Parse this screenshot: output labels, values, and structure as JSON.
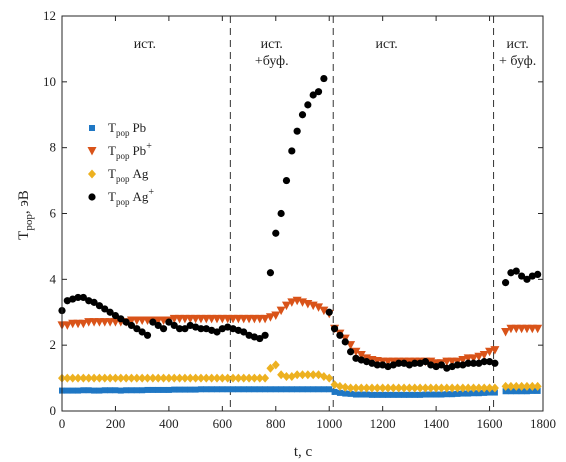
{
  "chart_data": {
    "type": "scatter",
    "xlabel": "t, c",
    "ylabel_main": "T",
    "ylabel_sub": "pop",
    "ylabel_tail": ", эВ",
    "xlim": [
      0,
      1800
    ],
    "ylim": [
      0,
      12
    ],
    "x_ticks": [
      "0",
      "200",
      "400",
      "600",
      "800",
      "1000",
      "1200",
      "1400",
      "1600",
      "1800"
    ],
    "y_ticks": [
      "0",
      "2",
      "4",
      "6",
      "8",
      "10",
      "12"
    ],
    "vlines": [
      630,
      1015,
      1615
    ],
    "regions": [
      {
        "lines": [
          "ист."
        ],
        "x": 310
      },
      {
        "lines": [
          "ист.",
          "+буф."
        ],
        "x": 785
      },
      {
        "lines": [
          "ист."
        ],
        "x": 1215
      },
      {
        "lines": [
          "ист.",
          "+ буф."
        ],
        "x": 1705
      }
    ],
    "legend": [
      {
        "main": "T",
        "sub": "pop",
        "ion": "Pb",
        "sup": "",
        "color": "#1f77c4",
        "marker": "square"
      },
      {
        "main": "T",
        "sub": "pop",
        "ion": "Pb",
        "sup": "+",
        "color": "#d95319",
        "marker": "triangle-down"
      },
      {
        "main": "T",
        "sub": "pop",
        "ion": "Ag",
        "sup": "",
        "color": "#edb120",
        "marker": "diamond"
      },
      {
        "main": "T",
        "sub": "pop",
        "ion": "Ag",
        "sup": "+",
        "color": "#000000",
        "marker": "circle"
      }
    ],
    "series": [
      {
        "marker": "square",
        "color": "#1f77c4",
        "x": [
          0,
          20,
          40,
          60,
          80,
          100,
          120,
          140,
          160,
          180,
          200,
          220,
          240,
          260,
          280,
          300,
          320,
          340,
          360,
          380,
          400,
          420,
          440,
          460,
          480,
          500,
          520,
          540,
          560,
          580,
          600,
          620,
          640,
          660,
          680,
          700,
          720,
          740,
          760,
          780,
          800,
          820,
          840,
          860,
          880,
          900,
          920,
          940,
          960,
          980,
          1000,
          1020,
          1040,
          1060,
          1080,
          1100,
          1120,
          1140,
          1160,
          1180,
          1200,
          1220,
          1240,
          1260,
          1280,
          1300,
          1320,
          1340,
          1360,
          1380,
          1400,
          1420,
          1440,
          1460,
          1480,
          1500,
          1520,
          1540,
          1560,
          1580,
          1600,
          1620,
          1660,
          1680,
          1700,
          1720,
          1740,
          1760,
          1780
        ],
        "y": [
          0.62,
          0.62,
          0.62,
          0.62,
          0.63,
          0.63,
          0.62,
          0.62,
          0.63,
          0.63,
          0.63,
          0.62,
          0.63,
          0.63,
          0.63,
          0.63,
          0.64,
          0.64,
          0.64,
          0.64,
          0.64,
          0.65,
          0.65,
          0.65,
          0.65,
          0.65,
          0.66,
          0.66,
          0.66,
          0.66,
          0.66,
          0.66,
          0.66,
          0.66,
          0.66,
          0.66,
          0.66,
          0.66,
          0.66,
          0.66,
          0.66,
          0.66,
          0.66,
          0.66,
          0.66,
          0.66,
          0.66,
          0.66,
          0.66,
          0.66,
          0.66,
          0.58,
          0.55,
          0.53,
          0.52,
          0.5,
          0.5,
          0.5,
          0.49,
          0.49,
          0.49,
          0.49,
          0.49,
          0.49,
          0.49,
          0.49,
          0.49,
          0.49,
          0.5,
          0.5,
          0.5,
          0.5,
          0.51,
          0.51,
          0.52,
          0.53,
          0.53,
          0.54,
          0.54,
          0.55,
          0.56,
          0.56,
          0.6,
          0.6,
          0.6,
          0.6,
          0.6,
          0.61,
          0.61
        ]
      },
      {
        "marker": "triangle-down",
        "color": "#d95319",
        "x": [
          0,
          20,
          40,
          60,
          80,
          100,
          120,
          140,
          160,
          180,
          200,
          220,
          240,
          260,
          280,
          300,
          320,
          340,
          360,
          380,
          400,
          420,
          440,
          460,
          480,
          500,
          520,
          540,
          560,
          580,
          600,
          620,
          640,
          660,
          680,
          700,
          720,
          740,
          760,
          780,
          800,
          820,
          840,
          860,
          880,
          900,
          920,
          940,
          960,
          980,
          1000,
          1020,
          1040,
          1060,
          1080,
          1100,
          1120,
          1140,
          1160,
          1180,
          1200,
          1220,
          1240,
          1260,
          1280,
          1300,
          1320,
          1340,
          1360,
          1380,
          1400,
          1420,
          1440,
          1460,
          1480,
          1500,
          1520,
          1540,
          1560,
          1580,
          1600,
          1620,
          1660,
          1680,
          1700,
          1720,
          1740,
          1760,
          1780
        ],
        "y": [
          2.6,
          2.6,
          2.65,
          2.65,
          2.65,
          2.7,
          2.7,
          2.7,
          2.7,
          2.7,
          2.7,
          2.7,
          2.7,
          2.75,
          2.75,
          2.75,
          2.75,
          2.75,
          2.75,
          2.75,
          2.75,
          2.8,
          2.8,
          2.8,
          2.8,
          2.8,
          2.8,
          2.8,
          2.8,
          2.8,
          2.8,
          2.8,
          2.8,
          2.8,
          2.8,
          2.8,
          2.8,
          2.8,
          2.8,
          2.85,
          2.9,
          3.05,
          3.2,
          3.3,
          3.35,
          3.3,
          3.25,
          3.2,
          3.15,
          3.05,
          2.95,
          2.5,
          2.35,
          2.2,
          2.0,
          1.8,
          1.7,
          1.6,
          1.55,
          1.52,
          1.5,
          1.5,
          1.5,
          1.5,
          1.5,
          1.5,
          1.5,
          1.5,
          1.5,
          1.5,
          1.45,
          1.45,
          1.5,
          1.5,
          1.5,
          1.55,
          1.6,
          1.6,
          1.65,
          1.7,
          1.8,
          1.85,
          2.4,
          2.5,
          2.5,
          2.5,
          2.5,
          2.5,
          2.5
        ]
      },
      {
        "marker": "diamond",
        "color": "#edb120",
        "x": [
          0,
          20,
          40,
          60,
          80,
          100,
          120,
          140,
          160,
          180,
          200,
          220,
          240,
          260,
          280,
          300,
          320,
          340,
          360,
          380,
          400,
          420,
          440,
          460,
          480,
          500,
          520,
          540,
          560,
          580,
          600,
          620,
          640,
          660,
          680,
          700,
          720,
          740,
          760,
          780,
          800,
          820,
          840,
          860,
          880,
          900,
          920,
          940,
          960,
          980,
          1000,
          1020,
          1040,
          1060,
          1080,
          1100,
          1120,
          1140,
          1160,
          1180,
          1200,
          1220,
          1240,
          1260,
          1280,
          1300,
          1320,
          1340,
          1360,
          1380,
          1400,
          1420,
          1440,
          1460,
          1480,
          1500,
          1520,
          1540,
          1560,
          1580,
          1600,
          1620,
          1660,
          1680,
          1700,
          1720,
          1740,
          1760,
          1780
        ],
        "y": [
          1.0,
          1.0,
          1.0,
          1.0,
          1.0,
          1.0,
          1.0,
          1.0,
          1.0,
          1.0,
          1.0,
          1.0,
          1.0,
          1.0,
          1.0,
          1.0,
          1.0,
          1.0,
          1.0,
          1.0,
          1.0,
          1.0,
          1.0,
          1.0,
          1.0,
          1.0,
          1.0,
          1.0,
          1.0,
          1.0,
          1.0,
          1.0,
          1.0,
          1.0,
          1.0,
          1.0,
          1.0,
          1.0,
          1.0,
          1.3,
          1.4,
          1.1,
          1.05,
          1.05,
          1.1,
          1.1,
          1.1,
          1.1,
          1.1,
          1.05,
          1.0,
          0.8,
          0.75,
          0.72,
          0.7,
          0.7,
          0.7,
          0.7,
          0.7,
          0.7,
          0.7,
          0.7,
          0.7,
          0.7,
          0.7,
          0.7,
          0.7,
          0.7,
          0.7,
          0.7,
          0.7,
          0.7,
          0.7,
          0.7,
          0.7,
          0.7,
          0.7,
          0.7,
          0.7,
          0.7,
          0.7,
          0.7,
          0.75,
          0.75,
          0.75,
          0.75,
          0.75,
          0.75,
          0.75
        ]
      },
      {
        "marker": "circle",
        "color": "#000000",
        "x": [
          0,
          20,
          40,
          60,
          80,
          100,
          120,
          140,
          160,
          180,
          200,
          220,
          240,
          260,
          280,
          300,
          320,
          340,
          360,
          380,
          400,
          420,
          440,
          460,
          480,
          500,
          520,
          540,
          560,
          580,
          600,
          620,
          640,
          660,
          680,
          700,
          720,
          740,
          760,
          780,
          800,
          820,
          840,
          860,
          880,
          900,
          920,
          940,
          960,
          980,
          1000,
          1020,
          1040,
          1060,
          1080,
          1100,
          1120,
          1140,
          1160,
          1180,
          1200,
          1220,
          1240,
          1260,
          1280,
          1300,
          1320,
          1340,
          1360,
          1380,
          1400,
          1420,
          1440,
          1460,
          1480,
          1500,
          1520,
          1540,
          1560,
          1580,
          1600,
          1620,
          1660,
          1680,
          1700,
          1720,
          1740,
          1760,
          1780
        ],
        "y": [
          3.05,
          3.35,
          3.4,
          3.45,
          3.45,
          3.35,
          3.3,
          3.2,
          3.1,
          3.0,
          2.9,
          2.8,
          2.7,
          2.6,
          2.5,
          2.4,
          2.3,
          2.7,
          2.6,
          2.5,
          2.7,
          2.6,
          2.5,
          2.5,
          2.6,
          2.55,
          2.5,
          2.5,
          2.45,
          2.4,
          2.5,
          2.55,
          2.5,
          2.45,
          2.4,
          2.3,
          2.25,
          2.2,
          2.3,
          4.2,
          5.4,
          6.0,
          7.0,
          7.9,
          8.5,
          9.0,
          9.3,
          9.6,
          9.7,
          10.1,
          3.0,
          2.5,
          2.3,
          2.1,
          1.8,
          1.6,
          1.55,
          1.5,
          1.45,
          1.4,
          1.4,
          1.35,
          1.4,
          1.45,
          1.45,
          1.4,
          1.45,
          1.45,
          1.5,
          1.4,
          1.35,
          1.4,
          1.3,
          1.35,
          1.4,
          1.4,
          1.45,
          1.45,
          1.45,
          1.5,
          1.5,
          1.45,
          3.9,
          4.2,
          4.25,
          4.1,
          4.0,
          4.1,
          4.15
        ]
      }
    ]
  }
}
